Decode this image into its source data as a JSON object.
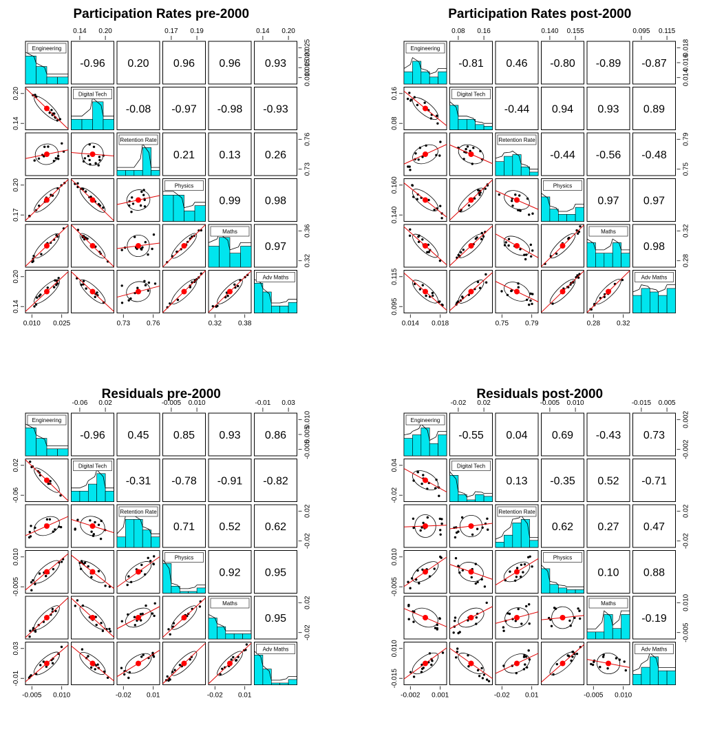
{
  "chart_data": [
    {
      "type": "scatterplot-matrix",
      "title": "Participation Rates pre-2000",
      "variables": [
        "Engineering",
        "Digital Tech",
        "Retention Rate",
        "Physics",
        "Maths",
        "Adv Maths"
      ],
      "axis_ticks": {
        "Engineering": [
          "0.010",
          "0.025"
        ],
        "Digital Tech": [
          "0.14",
          "0.20"
        ],
        "Retention Rate": [
          "0.73",
          "0.76"
        ],
        "Physics": [
          "0.17",
          "0.19"
        ],
        "Maths": [
          "0.32",
          "0.38"
        ],
        "Adv Maths": [
          "0.14",
          "0.20"
        ]
      },
      "right_ticks": {
        "Engineering": [
          "0.010",
          "0.015",
          "0.020",
          "0.025"
        ],
        "Retention Rate": [
          "0.73",
          "0.76"
        ],
        "Maths": [
          "0.32",
          "0.36"
        ]
      },
      "left_ticks": {
        "Digital Tech": [
          "0.14",
          "0.20"
        ],
        "Physics": [
          "0.17",
          "0.20"
        ],
        "Adv Maths": [
          "0.14",
          "0.20"
        ]
      },
      "correlations": [
        [
          "",
          "-0.96",
          "0.20",
          "0.96",
          "0.96",
          "0.93"
        ],
        [
          "",
          "",
          "-0.08",
          "-0.97",
          "-0.98",
          "-0.93"
        ],
        [
          "",
          "",
          "",
          "0.21",
          "0.13",
          "0.26"
        ],
        [
          "",
          "",
          "",
          "",
          "0.99",
          "0.98"
        ],
        [
          "",
          "",
          "",
          "",
          "",
          "0.97"
        ],
        [
          "",
          "",
          "",
          "",
          "",
          ""
        ]
      ],
      "histograms": [
        [
          0.8,
          0.5,
          0.2,
          0.2
        ],
        [
          0.3,
          0.3,
          0.8,
          0.3
        ],
        [
          0.15,
          0.15,
          0.15,
          0.8,
          0.15
        ],
        [
          0.75,
          0.75,
          0.3,
          0.45
        ],
        [
          0.6,
          0.85,
          0.4,
          0.6
        ],
        [
          0.85,
          0.6,
          0.2,
          0.2,
          0.3
        ]
      ]
    },
    {
      "type": "scatterplot-matrix",
      "title": "Participation Rates post-2000",
      "variables": [
        "Engineering",
        "Digital Tech",
        "Retention Rate",
        "Physics",
        "Maths",
        "Adv Maths"
      ],
      "axis_ticks": {
        "Engineering": [
          "0.014",
          "0.018"
        ],
        "Digital Tech": [
          "0.08",
          "0.16"
        ],
        "Retention Rate": [
          "0.75",
          "0.79"
        ],
        "Physics": [
          "0.140",
          "0.155"
        ],
        "Maths": [
          "0.28",
          "0.32"
        ],
        "Adv Maths": [
          "0.095",
          "0.115"
        ]
      },
      "right_ticks": {
        "Engineering": [
          "0.014",
          "0.016",
          "0.018"
        ],
        "Retention Rate": [
          "0.75",
          "0.79"
        ],
        "Maths": [
          "0.28",
          "0.32"
        ]
      },
      "left_ticks": {
        "Digital Tech": [
          "0.08",
          "0.16"
        ],
        "Physics": [
          "0.140",
          "0.160"
        ],
        "Adv Maths": [
          "0.095",
          "0.115"
        ]
      },
      "correlations": [
        [
          "",
          "-0.81",
          "0.46",
          "-0.80",
          "-0.89",
          "-0.87"
        ],
        [
          "",
          "",
          "-0.44",
          "0.94",
          "0.93",
          "0.89"
        ],
        [
          "",
          "",
          "",
          "-0.44",
          "-0.56",
          "-0.48"
        ],
        [
          "",
          "",
          "",
          "",
          "0.97",
          "0.97"
        ],
        [
          "",
          "",
          "",
          "",
          "",
          "0.98"
        ],
        [
          "",
          "",
          "",
          "",
          "",
          ""
        ]
      ],
      "histograms": [
        [
          0.35,
          0.65,
          0.35,
          0.2,
          0.35
        ],
        [
          0.7,
          0.3,
          0.3,
          0.15,
          0.1
        ],
        [
          0.4,
          0.55,
          0.6,
          0.25,
          0.1
        ],
        [
          0.7,
          0.35,
          0.2,
          0.2,
          0.4
        ],
        [
          0.7,
          0.4,
          0.4,
          0.7,
          0.4
        ],
        [
          0.5,
          0.7,
          0.6,
          0.5,
          0.7
        ]
      ]
    },
    {
      "type": "scatterplot-matrix",
      "title": "Residuals pre-2000",
      "variables": [
        "Engineering",
        "Digital Tech",
        "Retention Rate",
        "Physics",
        "Maths",
        "Adv Maths"
      ],
      "axis_ticks": {
        "Engineering": [
          "-0.005",
          "0.010"
        ],
        "Digital Tech": [
          "-0.06",
          "0.02"
        ],
        "Retention Rate": [
          "-0.02",
          "0.01"
        ],
        "Physics": [
          "-0.005",
          "0.010"
        ],
        "Maths": [
          "-0.02",
          "0.01"
        ],
        "Adv Maths": [
          "-0.01",
          "0.03"
        ]
      },
      "right_ticks": {
        "Engineering": [
          "-0.005",
          "0.005",
          "0.010"
        ],
        "Retention Rate": [
          "-0.02",
          "0.02"
        ],
        "Maths": [
          "-0.02",
          "0.02"
        ]
      },
      "left_ticks": {
        "Digital Tech": [
          "-0.06",
          "0.02"
        ],
        "Physics": [
          "-0.005",
          "0.010"
        ],
        "Adv Maths": [
          "-0.01",
          "0.03"
        ]
      },
      "correlations": [
        [
          "",
          "-0.96",
          "0.45",
          "0.85",
          "0.93",
          "0.86"
        ],
        [
          "",
          "",
          "-0.31",
          "-0.78",
          "-0.91",
          "-0.82"
        ],
        [
          "",
          "",
          "",
          "0.71",
          "0.52",
          "0.62"
        ],
        [
          "",
          "",
          "",
          "",
          "0.92",
          "0.95"
        ],
        [
          "",
          "",
          "",
          "",
          "",
          "0.95"
        ],
        [
          "",
          "",
          "",
          "",
          "",
          ""
        ]
      ],
      "histograms": [
        [
          0.8,
          0.5,
          0.2,
          0.2
        ],
        [
          0.3,
          0.3,
          0.5,
          0.8,
          0.3
        ],
        [
          0.3,
          0.8,
          0.8,
          0.5,
          0.3
        ],
        [
          0.85,
          0.2,
          0.05,
          0.05,
          0.15
        ],
        [
          0.6,
          0.35,
          0.15,
          0.15,
          0.15
        ],
        [
          0.85,
          0.45,
          0.05,
          0.05,
          0.15
        ]
      ]
    },
    {
      "type": "scatterplot-matrix",
      "title": "Residuals post-2000",
      "variables": [
        "Engineering",
        "Digital Tech",
        "Retention Rate",
        "Physics",
        "Maths",
        "Adv Maths"
      ],
      "axis_ticks": {
        "Engineering": [
          "-0.002",
          "0.001"
        ],
        "Digital Tech": [
          "-0.02",
          "0.02"
        ],
        "Retention Rate": [
          "-0.02",
          "0.01"
        ],
        "Physics": [
          "-0.005",
          "0.010"
        ],
        "Maths": [
          "-0.005",
          "0.010"
        ],
        "Adv Maths": [
          "-0.015",
          "0.005"
        ]
      },
      "right_ticks": {
        "Engineering": [
          "-0.002",
          "0.002"
        ],
        "Retention Rate": [
          "-0.02",
          "0.02"
        ],
        "Maths": [
          "-0.005",
          "0.010"
        ]
      },
      "left_ticks": {
        "Digital Tech": [
          "-0.02",
          "0.04"
        ],
        "Physics": [
          "-0.005",
          "0.010"
        ],
        "Adv Maths": [
          "-0.015",
          "0.010"
        ]
      },
      "correlations": [
        [
          "",
          "-0.55",
          "0.04",
          "0.69",
          "-0.43",
          "0.73"
        ],
        [
          "",
          "",
          "0.13",
          "-0.35",
          "0.52",
          "-0.71"
        ],
        [
          "",
          "",
          "",
          "0.62",
          "0.27",
          "0.47"
        ],
        [
          "",
          "",
          "",
          "",
          "0.10",
          "0.88"
        ],
        [
          "",
          "",
          "",
          "",
          "",
          "-0.19"
        ],
        [
          "",
          "",
          "",
          "",
          "",
          ""
        ]
      ],
      "histograms": [
        [
          0.5,
          0.6,
          0.8,
          0.35,
          0.6
        ],
        [
          0.75,
          0.2,
          0.05,
          0.2,
          0.15
        ],
        [
          0.15,
          0.35,
          0.7,
          0.8,
          0.2
        ],
        [
          0.7,
          0.25,
          0.15,
          0.1,
          0.1
        ],
        [
          0.2,
          0.2,
          0.7,
          0.3,
          0.7
        ],
        [
          0.3,
          0.5,
          0.8,
          0.4,
          0.4
        ]
      ]
    }
  ]
}
